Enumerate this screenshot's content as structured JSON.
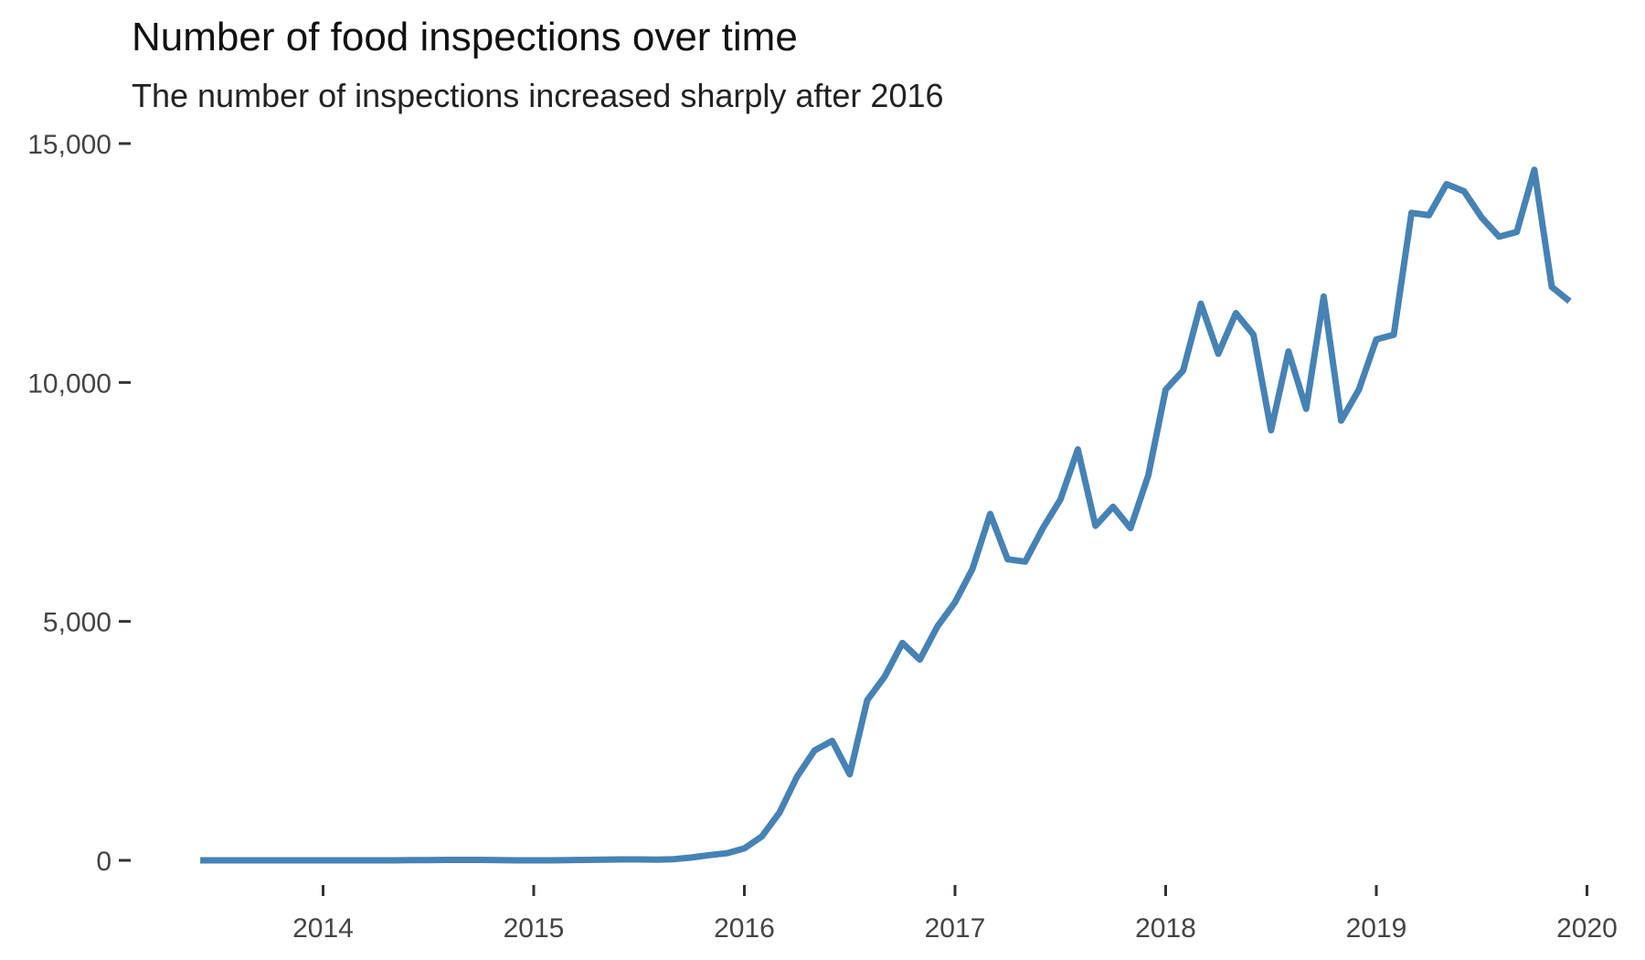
{
  "chart_data": {
    "type": "line",
    "title": "Number of food inspections over time",
    "subtitle": "The number of inspections increased sharply after 2016",
    "xlabel": "",
    "ylabel": "",
    "xlim": [
      2013.33,
      2020.0
    ],
    "ylim": [
      -700,
      15300
    ],
    "x_ticks": [
      2014,
      2015,
      2016,
      2017,
      2018,
      2019,
      2020
    ],
    "x_tick_labels": [
      "2014",
      "2015",
      "2016",
      "2017",
      "2018",
      "2019",
      "2020"
    ],
    "y_ticks": [
      0,
      5000,
      10000,
      15000
    ],
    "y_tick_labels": [
      "0",
      "5,000",
      "10,000",
      "15,000"
    ],
    "grid": false,
    "legend": "none",
    "line_color": "#4682b4",
    "series": [
      {
        "x": [
          2013.417,
          2013.5,
          2013.583,
          2013.667,
          2013.75,
          2013.833,
          2013.917,
          2014.0,
          2014.083,
          2014.167,
          2014.25,
          2014.333,
          2014.417,
          2014.5,
          2014.583,
          2014.667,
          2014.75,
          2014.833,
          2014.917,
          2015.0,
          2015.083,
          2015.167,
          2015.25,
          2015.333,
          2015.417,
          2015.5,
          2015.583,
          2015.667,
          2015.75,
          2015.833,
          2015.917,
          2016.0,
          2016.083,
          2016.167,
          2016.25,
          2016.333,
          2016.417,
          2016.5,
          2016.583,
          2016.667,
          2016.75,
          2016.833,
          2016.917,
          2017.0,
          2017.083,
          2017.167,
          2017.25,
          2017.333,
          2017.417,
          2017.5,
          2017.583,
          2017.667,
          2017.75,
          2017.833,
          2017.917,
          2018.0,
          2018.083,
          2018.167,
          2018.25,
          2018.333,
          2018.417,
          2018.5,
          2018.583,
          2018.667,
          2018.75,
          2018.833,
          2018.917,
          2019.0,
          2019.083,
          2019.167,
          2019.25,
          2019.333,
          2019.417,
          2019.5,
          2019.583,
          2019.667,
          2019.75,
          2019.833,
          2019.917
        ],
        "y": [
          0,
          0,
          0,
          0,
          0,
          0,
          0,
          0,
          0,
          0,
          0,
          0,
          5,
          5,
          10,
          10,
          10,
          5,
          0,
          0,
          0,
          5,
          10,
          15,
          20,
          20,
          15,
          25,
          60,
          110,
          150,
          250,
          500,
          1000,
          1750,
          2300,
          2500,
          1800,
          3350,
          3850,
          4550,
          4200,
          4900,
          5400,
          6100,
          7250,
          6300,
          6250,
          6950,
          7550,
          8600,
          7000,
          7400,
          6950,
          8050,
          9850,
          10250,
          11650,
          10600,
          11450,
          11000,
          9000,
          10650,
          9450,
          11800,
          9200,
          9850,
          10900,
          11000,
          13550,
          13500,
          14150,
          14000,
          13450,
          13050,
          13150,
          14450,
          12000,
          11700
        ]
      }
    ]
  }
}
